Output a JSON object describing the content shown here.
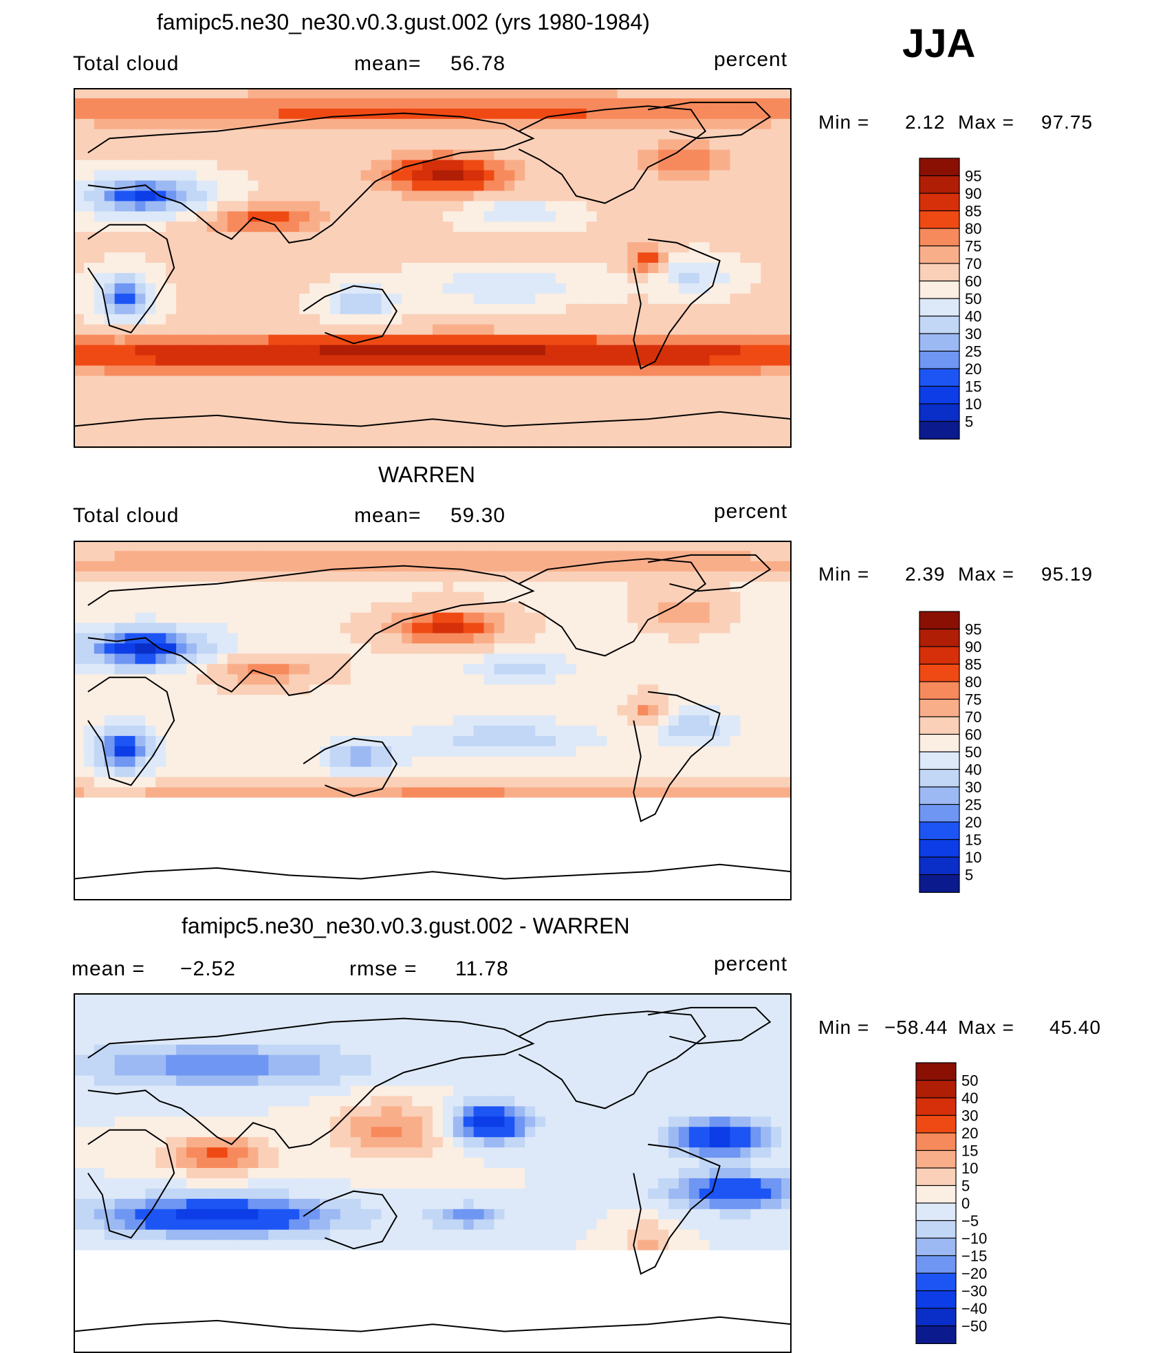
{
  "season": "JJA",
  "colors": {
    "obs_scale": [
      "#0b1a8c",
      "#0a2ec8",
      "#0c3de6",
      "#1d55f5",
      "#3e73f5",
      "#6e96f2",
      "#9cb9f3",
      "#c2d6f6",
      "#dde9f8",
      "#fbeee3",
      "#fad0b8",
      "#f9ae8a",
      "#f78a5c",
      "#f46a34",
      "#f04a14",
      "#d6300a",
      "#b01e06",
      "#8a1004"
    ],
    "diff_scale": [
      "#0b1a8c",
      "#0a2ec8",
      "#0c3de6",
      "#1d55f5",
      "#3e73f5",
      "#6e96f2",
      "#9cb9f3",
      "#c2d6f6",
      "#dde9f8",
      "#fbeee3",
      "#fad0b8",
      "#f9ae8a",
      "#f78a5c",
      "#f46a34",
      "#f04a14",
      "#d6300a",
      "#b01e06",
      "#8a1004"
    ],
    "coast": "#000000",
    "missing": "#ffffff"
  },
  "chart_data": [
    {
      "type": "heatmap",
      "title": "famipc5.ne30_ne30.v0.3.gust.002 (yrs 1980-1984)",
      "left_label": "Total cloud",
      "mean_label": "mean=",
      "mean_value": "56.78",
      "units": "percent",
      "min_label": "Min =",
      "min_value": "2.12",
      "max_label": "Max =",
      "max_value": "97.75",
      "colorbar_labels": [
        "95",
        "90",
        "85",
        "80",
        "75",
        "70",
        "60",
        "50",
        "40",
        "30",
        "25",
        "20",
        "15",
        "10",
        "5"
      ]
    },
    {
      "type": "heatmap",
      "title": "WARREN",
      "left_label": "Total cloud",
      "mean_label": "mean=",
      "mean_value": "59.30",
      "units": "percent",
      "min_label": "Min =",
      "min_value": "2.39",
      "max_label": "Max =",
      "max_value": "95.19",
      "colorbar_labels": [
        "95",
        "90",
        "85",
        "80",
        "75",
        "70",
        "60",
        "50",
        "40",
        "30",
        "25",
        "20",
        "15",
        "10",
        "5"
      ]
    },
    {
      "type": "heatmap",
      "title": "famipc5.ne30_ne30.v0.3.gust.002 - WARREN",
      "left_label": "mean =",
      "mean_label": "",
      "mean_value": "−2.52",
      "rmse_label": "rmse =",
      "rmse_value": "11.78",
      "units": "percent",
      "min_label": "Min =",
      "min_value": "−58.44",
      "max_label": "Max =",
      "max_value": "45.40",
      "colorbar_labels": [
        "50",
        "40",
        "30",
        "20",
        "15",
        "10",
        "5",
        "0",
        "−5",
        "−10",
        "−15",
        "−20",
        "−30",
        "−40",
        "−50"
      ]
    }
  ]
}
